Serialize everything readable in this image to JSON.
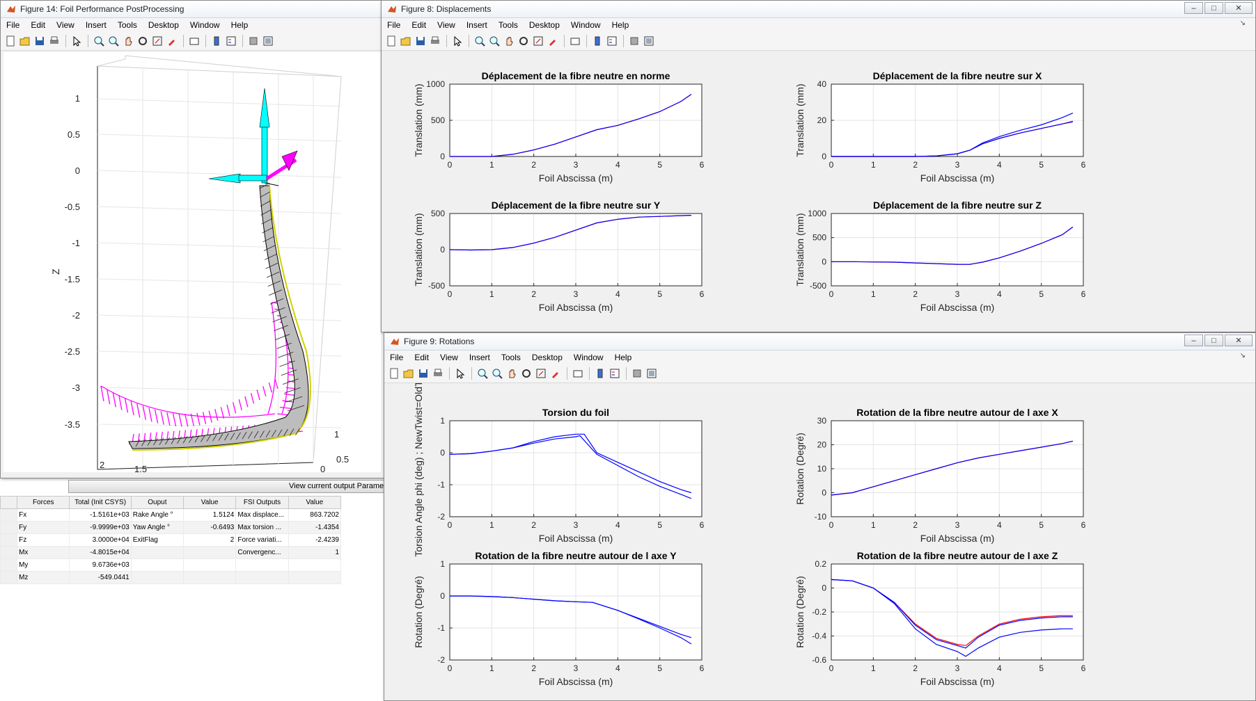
{
  "menu": [
    "File",
    "Edit",
    "View",
    "Insert",
    "Tools",
    "Desktop",
    "Window",
    "Help"
  ],
  "colors": {
    "blue": "#0000ff",
    "red": "#ff0000",
    "magenta": "#ff00ff",
    "cyan": "#00ffff",
    "axisbg": "#ffffff",
    "figbg": "#f0f0f0",
    "grid": "#e3e3e3"
  },
  "fig14": {
    "title": "Figure 14: Foil Performance PostProcessing",
    "zlabel": "Z",
    "zticks": [
      "1",
      "0.5",
      "0",
      "-0.5",
      "-1",
      "-1.5",
      "-2",
      "-2.5",
      "-3",
      "-3.5"
    ],
    "xticks": [
      "2",
      "1.5"
    ],
    "yticks": [
      "1",
      "0.5",
      "0"
    ],
    "view_button": "View current output Parameters",
    "table": {
      "headers": [
        "Forces",
        "Total (Init CSYS)",
        "Ouput",
        "Value",
        "FSI Outputs",
        "Value"
      ],
      "rows": [
        [
          "Fx",
          "-1.5161e+03",
          "Rake Angle °",
          "1.5124",
          "Max displace...",
          "863.7202"
        ],
        [
          "Fy",
          "-9.9999e+03",
          "Yaw Angle °",
          "-0.6493",
          "Max torsion ...",
          "-1.4354"
        ],
        [
          "Fz",
          "3.0000e+04",
          "ExitFlag",
          "2",
          "Force variati...",
          "-2.4239"
        ],
        [
          "Mx",
          "-4.8015e+04",
          "",
          "",
          "Convergenc...",
          "1"
        ],
        [
          "My",
          "9.6736e+03",
          "",
          "",
          "",
          ""
        ],
        [
          "Mz",
          "-549.0441",
          "",
          "",
          "",
          ""
        ]
      ]
    }
  },
  "fig8": {
    "title": "Figure 8: Displacements",
    "plots": [
      {
        "title": "Déplacement de la fibre neutre en norme",
        "xlabel": "Foil Abscissa (m)",
        "ylabel": "Translation (mm)"
      },
      {
        "title": "Déplacement de la fibre neutre sur X",
        "xlabel": "Foil Abscissa (m)",
        "ylabel": "Translation (mm)"
      },
      {
        "title": "Déplacement de la fibre neutre sur Y",
        "xlabel": "Foil Abscissa (m)",
        "ylabel": "Translation (mm)"
      },
      {
        "title": "Déplacement de la fibre neutre sur Z",
        "xlabel": "Foil Abscissa (m)",
        "ylabel": "Translation (mm)"
      }
    ]
  },
  "fig9": {
    "title": "Figure 9: Rotations",
    "plots": [
      {
        "title": "Torsion du foil",
        "xlabel": "Foil Abscissa (m)",
        "ylabel": "Torsion Angle phi (deg) ; NewTwist=OldT"
      },
      {
        "title": "Rotation de la fibre neutre autour de l axe X",
        "xlabel": "Foil Abscissa (m)",
        "ylabel": "Rotation (Degré)"
      },
      {
        "title": "Rotation de la fibre neutre autour de l axe Y",
        "xlabel": "Foil Abscissa (m)",
        "ylabel": "Rotation (Degré)"
      },
      {
        "title": "Rotation de la fibre neutre autour de l axe Z",
        "xlabel": "Foil Abscissa (m)",
        "ylabel": "Rotation (Degré)"
      }
    ]
  },
  "chart_data": [
    {
      "type": "line",
      "title": "Déplacement de la fibre neutre en norme",
      "xlabel": "Foil Abscissa (m)",
      "ylabel": "Translation (mm)",
      "xlim": [
        0,
        6
      ],
      "ylim": [
        0,
        1000
      ],
      "xticks": [
        0,
        1,
        2,
        3,
        4,
        5,
        6
      ],
      "yticks": [
        0,
        500,
        1000
      ],
      "series": [
        {
          "color": "#ff0000",
          "x": [
            0,
            0.5,
            1,
            1.5,
            2,
            2.5,
            3,
            3.5,
            4,
            4.5,
            5,
            5.5,
            5.75
          ],
          "y": [
            0,
            0,
            0,
            30,
            90,
            170,
            270,
            370,
            430,
            520,
            620,
            760,
            860
          ]
        },
        {
          "color": "#0000ff",
          "x": [
            0,
            0.5,
            1,
            1.5,
            2,
            2.5,
            3,
            3.5,
            4,
            4.5,
            5,
            5.5,
            5.75
          ],
          "y": [
            0,
            0,
            0,
            30,
            90,
            170,
            270,
            370,
            430,
            520,
            620,
            760,
            860
          ]
        }
      ]
    },
    {
      "type": "line",
      "title": "Déplacement de la fibre neutre sur X",
      "xlabel": "Foil Abscissa (m)",
      "ylabel": "Translation (mm)",
      "xlim": [
        0,
        6
      ],
      "ylim": [
        0,
        40
      ],
      "xticks": [
        0,
        1,
        2,
        3,
        4,
        5,
        6
      ],
      "yticks": [
        0,
        20,
        40
      ],
      "series": [
        {
          "color": "#ff0000",
          "x": [
            0,
            1,
            2,
            2.5,
            3,
            3.3,
            3.6,
            4,
            4.5,
            5,
            5.5,
            5.75
          ],
          "y": [
            0,
            0,
            0,
            0.3,
            1.5,
            3.5,
            7,
            10,
            13,
            15.5,
            18,
            19.5
          ]
        },
        {
          "color": "#0000ff",
          "x": [
            0,
            1,
            2,
            2.5,
            3,
            3.3,
            3.6,
            4,
            4.5,
            5,
            5.5,
            5.75
          ],
          "y": [
            0,
            0,
            0,
            0.3,
            1.5,
            3.5,
            7,
            10,
            13,
            15.5,
            18,
            19.2
          ]
        },
        {
          "color": "#0000ff",
          "x": [
            0,
            1,
            2,
            2.5,
            3,
            3.3,
            3.6,
            4,
            4.5,
            5,
            5.5,
            5.75
          ],
          "y": [
            0,
            0,
            0,
            0.3,
            1.5,
            3.5,
            7.5,
            11,
            14.5,
            17.5,
            21.5,
            24
          ]
        }
      ]
    },
    {
      "type": "line",
      "title": "Déplacement de la fibre neutre sur Y",
      "xlabel": "Foil Abscissa (m)",
      "ylabel": "Translation (mm)",
      "xlim": [
        0,
        6
      ],
      "ylim": [
        -500,
        500
      ],
      "xticks": [
        0,
        1,
        2,
        3,
        4,
        5,
        6
      ],
      "yticks": [
        -500,
        0,
        500
      ],
      "series": [
        {
          "color": "#ff0000",
          "x": [
            0,
            0.5,
            1,
            1.5,
            2,
            2.5,
            3,
            3.5,
            4,
            4.5,
            5,
            5.5,
            5.75
          ],
          "y": [
            0,
            -5,
            0,
            30,
            90,
            170,
            270,
            370,
            420,
            450,
            460,
            470,
            475
          ]
        },
        {
          "color": "#0000ff",
          "x": [
            0,
            0.5,
            1,
            1.5,
            2,
            2.5,
            3,
            3.5,
            4,
            4.5,
            5,
            5.5,
            5.75
          ],
          "y": [
            0,
            -5,
            0,
            30,
            90,
            170,
            270,
            370,
            420,
            450,
            460,
            470,
            475
          ]
        }
      ]
    },
    {
      "type": "line",
      "title": "Déplacement de la fibre neutre sur Z",
      "xlabel": "Foil Abscissa (m)",
      "ylabel": "Translation (mm)",
      "xlim": [
        0,
        6
      ],
      "ylim": [
        -500,
        1000
      ],
      "xticks": [
        0,
        1,
        2,
        3,
        4,
        5,
        6
      ],
      "yticks": [
        -500,
        0,
        500,
        1000
      ],
      "series": [
        {
          "color": "#ff0000",
          "x": [
            0,
            0.5,
            1,
            1.5,
            2,
            2.5,
            3,
            3.3,
            3.6,
            4,
            4.5,
            5,
            5.5,
            5.75
          ],
          "y": [
            0,
            0,
            -5,
            -10,
            -25,
            -40,
            -55,
            -55,
            -10,
            80,
            220,
            380,
            560,
            720
          ]
        },
        {
          "color": "#0000ff",
          "x": [
            0,
            0.5,
            1,
            1.5,
            2,
            2.5,
            3,
            3.3,
            3.6,
            4,
            4.5,
            5,
            5.5,
            5.75
          ],
          "y": [
            0,
            0,
            -5,
            -10,
            -25,
            -40,
            -55,
            -55,
            -10,
            80,
            220,
            380,
            560,
            720
          ]
        }
      ]
    },
    {
      "type": "line",
      "title": "Torsion du foil",
      "xlabel": "Foil Abscissa (m)",
      "ylabel": "Torsion Angle phi (deg) ; NewTwist=OldT",
      "xlim": [
        0,
        6
      ],
      "ylim": [
        -2,
        1
      ],
      "xticks": [
        0,
        1,
        2,
        3,
        4,
        5,
        6
      ],
      "yticks": [
        -2,
        -1,
        0,
        1
      ],
      "series": [
        {
          "color": "#0000ff",
          "x": [
            0,
            0.5,
            1,
            1.5,
            2,
            2.5,
            3,
            3.2,
            3.5,
            4,
            4.5,
            5,
            5.5,
            5.75
          ],
          "y": [
            -0.05,
            -0.03,
            0.05,
            0.15,
            0.35,
            0.5,
            0.58,
            0.58,
            0,
            -0.3,
            -0.6,
            -0.9,
            -1.15,
            -1.25
          ]
        },
        {
          "color": "#0000ff",
          "x": [
            0,
            0.5,
            1,
            1.5,
            2,
            2.5,
            3,
            3.1,
            3.5,
            4,
            4.5,
            5,
            5.5,
            5.75
          ],
          "y": [
            -0.05,
            -0.03,
            0.05,
            0.15,
            0.3,
            0.43,
            0.5,
            0.53,
            -0.05,
            -0.4,
            -0.75,
            -1.05,
            -1.3,
            -1.43
          ]
        }
      ]
    },
    {
      "type": "line",
      "title": "Rotation de la fibre neutre autour de l axe X",
      "xlabel": "Foil Abscissa (m)",
      "ylabel": "Rotation (Degré)",
      "xlim": [
        0,
        6
      ],
      "ylim": [
        -10,
        30
      ],
      "xticks": [
        0,
        1,
        2,
        3,
        4,
        5,
        6
      ],
      "yticks": [
        -10,
        0,
        10,
        20,
        30
      ],
      "series": [
        {
          "color": "#ff0000",
          "x": [
            0,
            0.5,
            1,
            1.5,
            2,
            2.5,
            3,
            3.5,
            4,
            4.5,
            5,
            5.5,
            5.75
          ],
          "y": [
            -1,
            0,
            2.5,
            5,
            7.5,
            10,
            12.5,
            14.5,
            16,
            17.5,
            19,
            20.5,
            21.5
          ]
        },
        {
          "color": "#0000ff",
          "x": [
            0,
            0.5,
            1,
            1.5,
            2,
            2.5,
            3,
            3.5,
            4,
            4.5,
            5,
            5.5,
            5.75
          ],
          "y": [
            -1,
            0,
            2.5,
            5,
            7.5,
            10,
            12.5,
            14.5,
            16,
            17.5,
            19,
            20.5,
            21.5
          ]
        }
      ]
    },
    {
      "type": "line",
      "title": "Rotation de la fibre neutre autour de l axe Y",
      "xlabel": "Foil Abscissa (m)",
      "ylabel": "Rotation (Degré)",
      "xlim": [
        0,
        6
      ],
      "ylim": [
        -2,
        1
      ],
      "xticks": [
        0,
        1,
        2,
        3,
        4,
        5,
        6
      ],
      "yticks": [
        -2,
        -1,
        0,
        1
      ],
      "series": [
        {
          "color": "#0000ff",
          "x": [
            0,
            0.5,
            1,
            1.5,
            2,
            2.5,
            3,
            3.4,
            4,
            4.5,
            5,
            5.5,
            5.75
          ],
          "y": [
            0,
            0,
            -0.02,
            -0.05,
            -0.1,
            -0.15,
            -0.18,
            -0.2,
            -0.45,
            -0.7,
            -0.95,
            -1.2,
            -1.3
          ]
        },
        {
          "color": "#0000ff",
          "x": [
            0,
            0.5,
            1,
            1.5,
            2,
            2.5,
            3,
            3.4,
            4,
            4.5,
            5,
            5.5,
            5.75
          ],
          "y": [
            0,
            0,
            -0.02,
            -0.05,
            -0.1,
            -0.15,
            -0.18,
            -0.2,
            -0.45,
            -0.72,
            -1.0,
            -1.3,
            -1.5
          ]
        }
      ]
    },
    {
      "type": "line",
      "title": "Rotation de la fibre neutre autour de l axe Z",
      "xlabel": "Foil Abscissa (m)",
      "ylabel": "Rotation (Degré)",
      "xlim": [
        0,
        6
      ],
      "ylim": [
        -0.6,
        0.2
      ],
      "xticks": [
        0,
        1,
        2,
        3,
        4,
        5,
        6
      ],
      "yticks": [
        -0.6,
        -0.4,
        -0.2,
        0,
        0.2
      ],
      "series": [
        {
          "color": "#ff0000",
          "x": [
            0,
            0.5,
            1,
            1.5,
            2,
            2.5,
            3,
            3.2,
            3.5,
            4,
            4.5,
            5,
            5.5,
            5.75
          ],
          "y": [
            0.07,
            0.06,
            0,
            -0.12,
            -0.3,
            -0.42,
            -0.47,
            -0.48,
            -0.4,
            -0.3,
            -0.26,
            -0.24,
            -0.23,
            -0.23
          ]
        },
        {
          "color": "#0000ff",
          "x": [
            0,
            0.5,
            1,
            1.5,
            2,
            2.5,
            3,
            3.2,
            3.5,
            4,
            4.5,
            5,
            5.5,
            5.75
          ],
          "y": [
            0.07,
            0.06,
            0,
            -0.12,
            -0.31,
            -0.43,
            -0.48,
            -0.5,
            -0.41,
            -0.31,
            -0.27,
            -0.25,
            -0.24,
            -0.24
          ]
        },
        {
          "color": "#0000ff",
          "x": [
            0,
            0.5,
            1,
            1.5,
            2,
            2.5,
            3,
            3.2,
            3.5,
            4,
            4.5,
            5,
            5.5,
            5.75
          ],
          "y": [
            0.07,
            0.06,
            0,
            -0.13,
            -0.34,
            -0.47,
            -0.53,
            -0.57,
            -0.5,
            -0.41,
            -0.37,
            -0.35,
            -0.34,
            -0.34
          ]
        }
      ]
    }
  ]
}
